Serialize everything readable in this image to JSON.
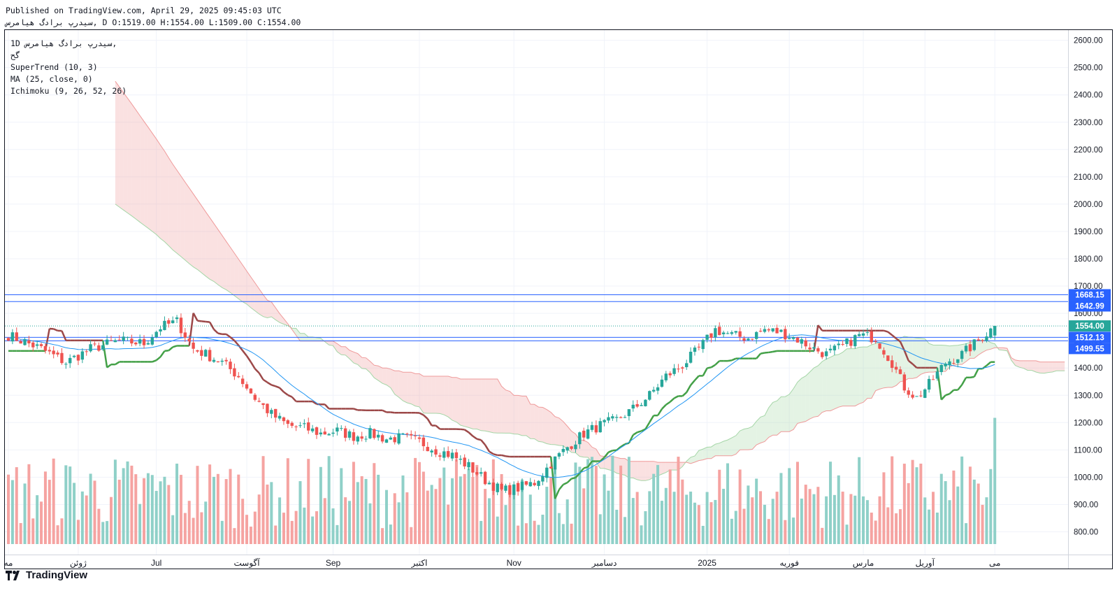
{
  "header": {
    "published": "Published on TradingView.com, April 29, 2025 09:45:03 UTC",
    "ohlc": "سیدرپ برادگ هیامرس, D O:1519.00 H:1554.00 L:1509.00 C:1554.00"
  },
  "legend": {
    "symbol": "1D  سیدرپ برادگ هیامرس,",
    "exchange": "گح",
    "supertrend": "SuperTrend (10, 3)",
    "ma": "MA (25, close, 0)",
    "ichimoku": "Ichimoku (9, 26, 52, 26)"
  },
  "footer": {
    "brand": "TradingView"
  },
  "colors": {
    "up": "#26a69a",
    "down": "#ef5350",
    "vol_up": "#8fd0c8",
    "vol_down": "#f5a3a1",
    "supertrend_up": "#43a047",
    "supertrend_down": "#9c4848",
    "ma": "#2196f3",
    "cloud_bull": "#a5d6a7",
    "cloud_bear": "#ef9a9a",
    "hline": "#2962ff"
  },
  "chart_data": {
    "type": "candlestick",
    "title": "سیدرپ برادگ هیامرس, 1D",
    "ylim": [
      750,
      2620
    ],
    "y_ticks": [
      800,
      900,
      1000,
      1100,
      1200,
      1300,
      1400,
      1500,
      1600,
      1700,
      1800,
      1900,
      2000,
      2100,
      2200,
      2300,
      2400,
      2500,
      2600
    ],
    "x_labels": [
      {
        "t": 0,
        "label": "مه"
      },
      {
        "t": 17,
        "label": "ژوئن"
      },
      {
        "t": 36,
        "label": "Jul"
      },
      {
        "t": 58,
        "label": "آگوست"
      },
      {
        "t": 79,
        "label": "Sep"
      },
      {
        "t": 100,
        "label": "اکتبر"
      },
      {
        "t": 123,
        "label": "Nov"
      },
      {
        "t": 145,
        "label": "دسامبر"
      },
      {
        "t": 170,
        "label": "2025"
      },
      {
        "t": 190,
        "label": "فوریه"
      },
      {
        "t": 208,
        "label": "مارس"
      },
      {
        "t": 223,
        "label": "آوریل"
      },
      {
        "t": 240,
        "label": "می"
      }
    ],
    "price_labels": [
      {
        "value": 1668.15,
        "label": "1668.15",
        "color": "#2962ff"
      },
      {
        "value": 1642.99,
        "label": "1642.99",
        "color": "#2962ff"
      },
      {
        "value": 1554.0,
        "label": "1554.00",
        "color": "#26a69a"
      },
      {
        "value": 1512.13,
        "label": "1512.13",
        "color": "#2962ff"
      },
      {
        "value": 1499.55,
        "label": "1499.55",
        "color": "#2962ff"
      }
    ],
    "horizontal_lines": [
      1668.15,
      1642.99,
      1512.13,
      1499.55
    ],
    "last_close": 1554.0,
    "series": [
      {
        "name": "Price",
        "type": "candle",
        "anchors": [
          [
            0,
            1520
          ],
          [
            8,
            1470
          ],
          [
            14,
            1420
          ],
          [
            20,
            1470
          ],
          [
            27,
            1500
          ],
          [
            33,
            1490
          ],
          [
            37,
            1550
          ],
          [
            41,
            1570
          ],
          [
            45,
            1470
          ],
          [
            48,
            1450
          ],
          [
            52,
            1420
          ],
          [
            56,
            1370
          ],
          [
            60,
            1290
          ],
          [
            64,
            1230
          ],
          [
            68,
            1190
          ],
          [
            72,
            1180
          ],
          [
            76,
            1160
          ],
          [
            80,
            1170
          ],
          [
            84,
            1150
          ],
          [
            88,
            1160
          ],
          [
            92,
            1140
          ],
          [
            96,
            1145
          ],
          [
            100,
            1130
          ],
          [
            104,
            1100
          ],
          [
            108,
            1080
          ],
          [
            112,
            1040
          ],
          [
            116,
            990
          ],
          [
            120,
            950
          ],
          [
            124,
            960
          ],
          [
            128,
            980
          ],
          [
            132,
            1050
          ],
          [
            136,
            1110
          ],
          [
            140,
            1160
          ],
          [
            144,
            1190
          ],
          [
            148,
            1210
          ],
          [
            152,
            1250
          ],
          [
            156,
            1300
          ],
          [
            160,
            1370
          ],
          [
            164,
            1410
          ],
          [
            168,
            1470
          ],
          [
            172,
            1540
          ],
          [
            176,
            1520
          ],
          [
            180,
            1510
          ],
          [
            184,
            1540
          ],
          [
            188,
            1530
          ],
          [
            192,
            1505
          ],
          [
            196,
            1470
          ],
          [
            199,
            1450
          ],
          [
            203,
            1480
          ],
          [
            207,
            1520
          ],
          [
            211,
            1510
          ],
          [
            215,
            1420
          ],
          [
            218,
            1330
          ],
          [
            221,
            1290
          ],
          [
            224,
            1340
          ],
          [
            228,
            1420
          ],
          [
            232,
            1450
          ],
          [
            236,
            1500
          ],
          [
            240,
            1554
          ]
        ]
      },
      {
        "name": "Volume",
        "type": "bar",
        "range": [
          200000,
          4500000
        ]
      },
      {
        "name": "SuperTrend",
        "type": "line",
        "colors": [
          "#43a047",
          "#9c4848"
        ]
      },
      {
        "name": "MA (25, close, 0)",
        "type": "line",
        "color": "#2196f3"
      },
      {
        "name": "Ichimoku (9, 26, 52, 26)",
        "type": "cloud",
        "colors": [
          "#a5d6a7",
          "#ef9a9a"
        ],
        "span_a_start": 2000,
        "span_b_start": 2450
      }
    ]
  }
}
